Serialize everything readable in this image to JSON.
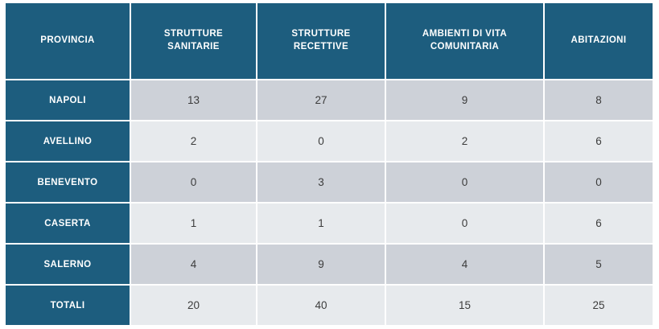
{
  "chart_data": {
    "type": "table",
    "columns": [
      "PROVINCIA",
      "STRUTTURE SANITARIE",
      "STRUTTURE RECETTIVE",
      "AMBIENTI DI VITA COMUNITARIA",
      "ABITAZIONI"
    ],
    "rows": [
      {
        "label": "NAPOLI",
        "values": [
          13,
          27,
          9,
          8
        ]
      },
      {
        "label": "AVELLINO",
        "values": [
          2,
          0,
          2,
          6
        ]
      },
      {
        "label": "BENEVENTO",
        "values": [
          0,
          3,
          0,
          0
        ]
      },
      {
        "label": "CASERTA",
        "values": [
          1,
          1,
          0,
          6
        ]
      },
      {
        "label": "SALERNO",
        "values": [
          4,
          9,
          4,
          5
        ]
      },
      {
        "label": "TOTALI",
        "values": [
          20,
          40,
          15,
          25
        ]
      }
    ]
  },
  "colors": {
    "header_bg": "#1d5d7e",
    "header_text": "#ffffff",
    "row_dark_bg": "#cdd1d8",
    "row_light_bg": "#e7eaed",
    "value_text": "#3c3c3c"
  }
}
